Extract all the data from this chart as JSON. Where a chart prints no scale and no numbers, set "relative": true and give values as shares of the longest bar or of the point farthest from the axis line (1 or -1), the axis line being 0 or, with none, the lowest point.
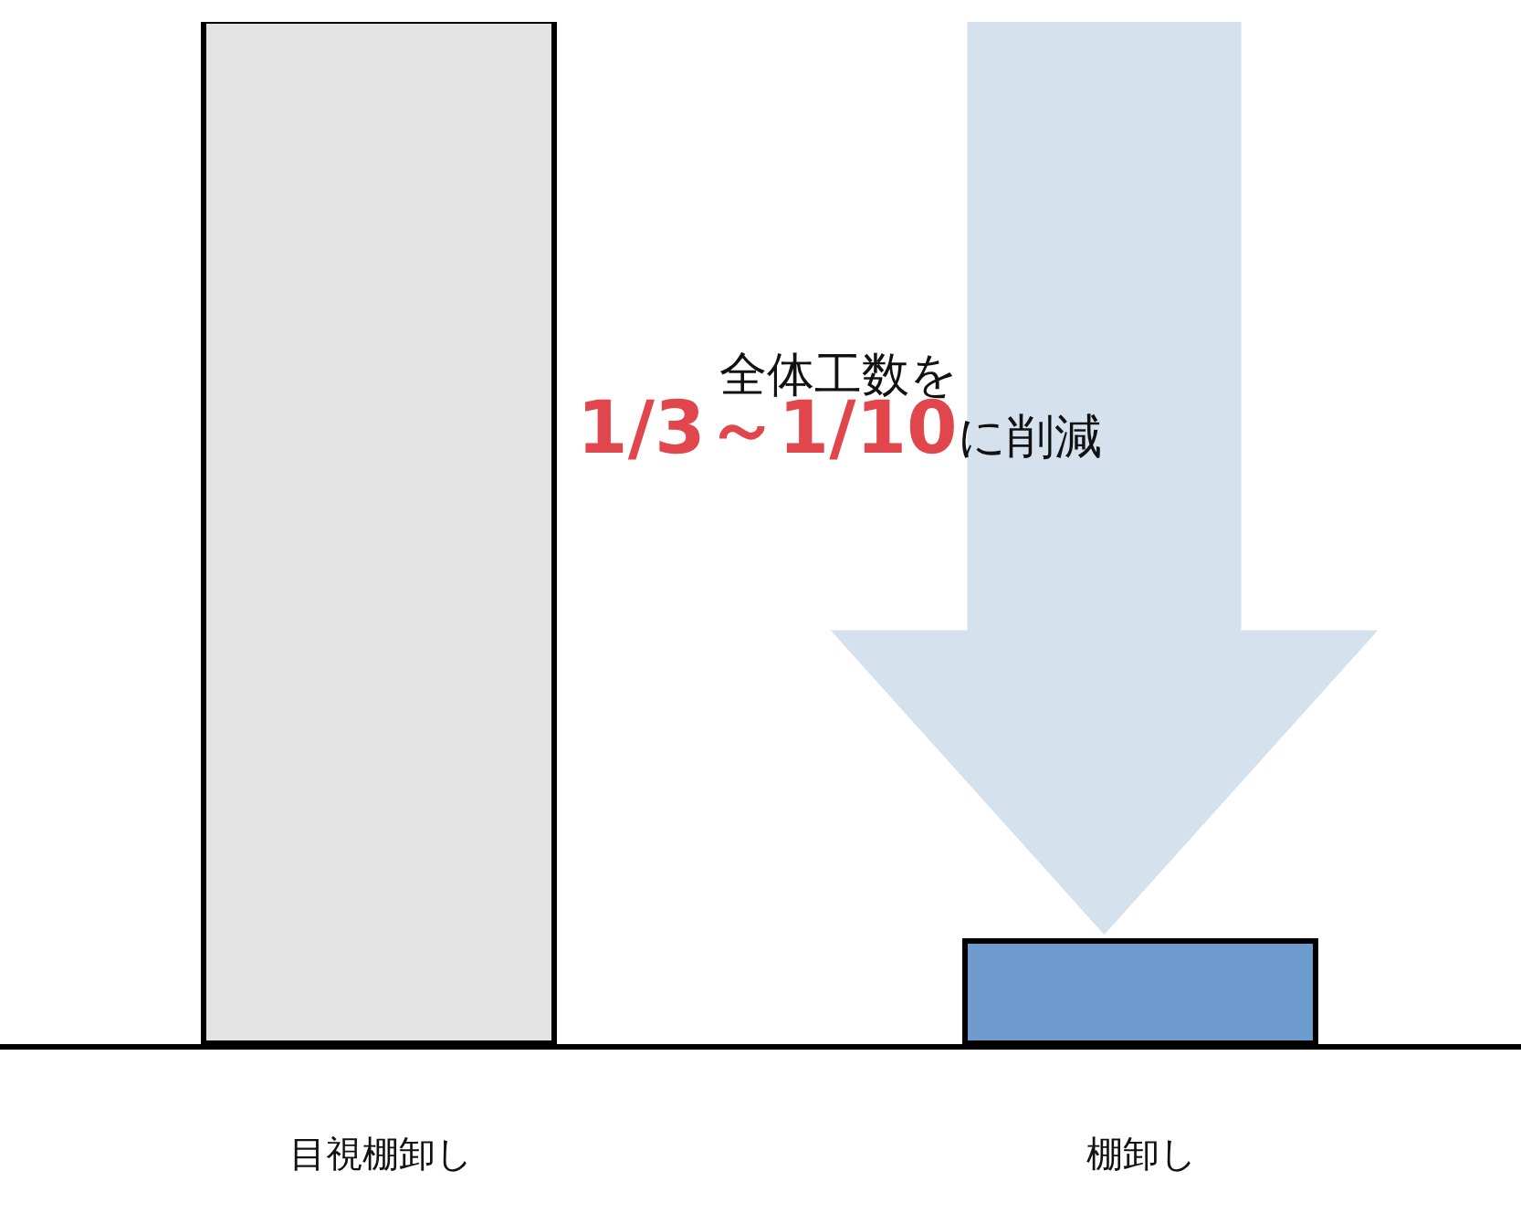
{
  "chart_data": {
    "type": "bar",
    "relative": true,
    "categories": [
      "目視棚卸し",
      "棚卸し"
    ],
    "values": [
      1,
      0.1
    ],
    "colors": [
      "#e3e3e3",
      "#6f9ccf"
    ],
    "annotations": [
      "全体工数を",
      "1/3～1/10に削減"
    ]
  }
}
